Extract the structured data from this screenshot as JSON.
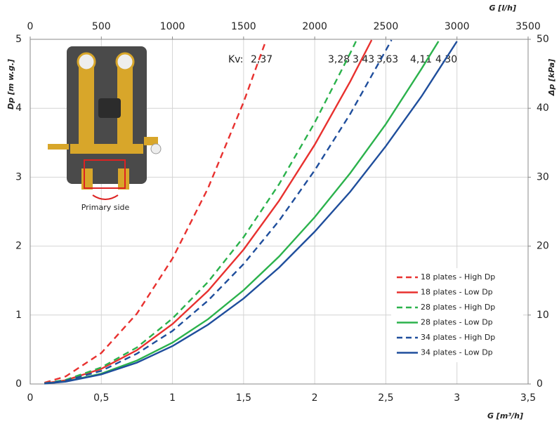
{
  "chart_data": {
    "type": "line",
    "x_label": "G [m³/h]",
    "x2_label": "G [l/h]",
    "y_label": "Dp [m w.g.]",
    "y2_label": "Δp [kPa]",
    "xlim": [
      0,
      3.5
    ],
    "xticks": [
      0,
      {
        "value": 0.5,
        "label": "0,5"
      },
      1,
      {
        "value": 1.5,
        "label": "1,5"
      },
      2,
      {
        "value": 2.5,
        "label": "2,5"
      },
      3,
      {
        "value": 3.5,
        "label": "3,5"
      }
    ],
    "x2lim": [
      0,
      3500
    ],
    "x2ticks": [
      0,
      500,
      1000,
      1500,
      2000,
      2500,
      3000,
      3500
    ],
    "ylim": [
      0,
      5
    ],
    "yticks": [
      0,
      1,
      2,
      3,
      4,
      5
    ],
    "y2lim": [
      0,
      50
    ],
    "y2ticks": [
      0,
      10,
      20,
      30,
      40,
      50
    ],
    "grid": true,
    "legend": "lower right",
    "kv_label": "Kv:",
    "kv_values": [
      "2,37",
      "3,28",
      "3,43",
      "3,63",
      "4,11",
      "4,30"
    ],
    "inset_caption": "Primary side",
    "series": [
      {
        "name": "18 plates - High Dp",
        "color": "#e8312f",
        "style": "dashed",
        "x": [
          0.1,
          0.25,
          0.5,
          0.75,
          1,
          1.25,
          1.5,
          1.65
        ],
        "values": [
          0.018,
          0.11,
          0.45,
          1.02,
          1.82,
          2.84,
          4.09,
          4.94
        ]
      },
      {
        "name": "18 plates - Low Dp",
        "color": "#e8312f",
        "style": "solid",
        "x": [
          0.1,
          0.25,
          0.5,
          0.75,
          1,
          1.25,
          1.5,
          1.75,
          2,
          2.25,
          2.4
        ],
        "values": [
          0.009,
          0.054,
          0.22,
          0.49,
          0.87,
          1.35,
          1.95,
          2.66,
          3.47,
          4.39,
          4.99
        ]
      },
      {
        "name": "28 plates - High Dp",
        "color": "#2bb24c",
        "style": "dashed",
        "x": [
          0.1,
          0.25,
          0.5,
          0.75,
          1,
          1.25,
          1.5,
          1.75,
          2,
          2.25,
          2.29
        ],
        "values": [
          0.009,
          0.06,
          0.24,
          0.53,
          0.95,
          1.48,
          2.13,
          2.9,
          3.79,
          4.8,
          4.97
        ]
      },
      {
        "name": "28 plates - Low Dp",
        "color": "#2bb24c",
        "style": "solid",
        "x": [
          0.1,
          0.25,
          0.5,
          0.75,
          1,
          1.25,
          1.5,
          1.75,
          2,
          2.25,
          2.5,
          2.75,
          2.87
        ],
        "values": [
          0.006,
          0.038,
          0.15,
          0.34,
          0.6,
          0.94,
          1.36,
          1.85,
          2.42,
          3.06,
          3.77,
          4.57,
          4.97
        ]
      },
      {
        "name": "34 plates - High Dp",
        "color": "#1f4e9c",
        "style": "dashed",
        "x": [
          0.1,
          0.25,
          0.5,
          0.75,
          1,
          1.25,
          1.5,
          1.75,
          2,
          2.25,
          2.5,
          2.54
        ],
        "values": [
          0.008,
          0.048,
          0.19,
          0.44,
          0.77,
          1.21,
          1.74,
          2.37,
          3.1,
          3.92,
          4.84,
          4.99
        ]
      },
      {
        "name": "34 plates - Low Dp",
        "color": "#1f4e9c",
        "style": "solid",
        "x": [
          0.1,
          0.25,
          0.5,
          0.75,
          1,
          1.25,
          1.5,
          1.75,
          2,
          2.25,
          2.5,
          2.75,
          3
        ],
        "values": [
          0.006,
          0.034,
          0.14,
          0.31,
          0.55,
          0.86,
          1.24,
          1.69,
          2.21,
          2.79,
          3.45,
          4.17,
          4.97
        ]
      }
    ]
  }
}
